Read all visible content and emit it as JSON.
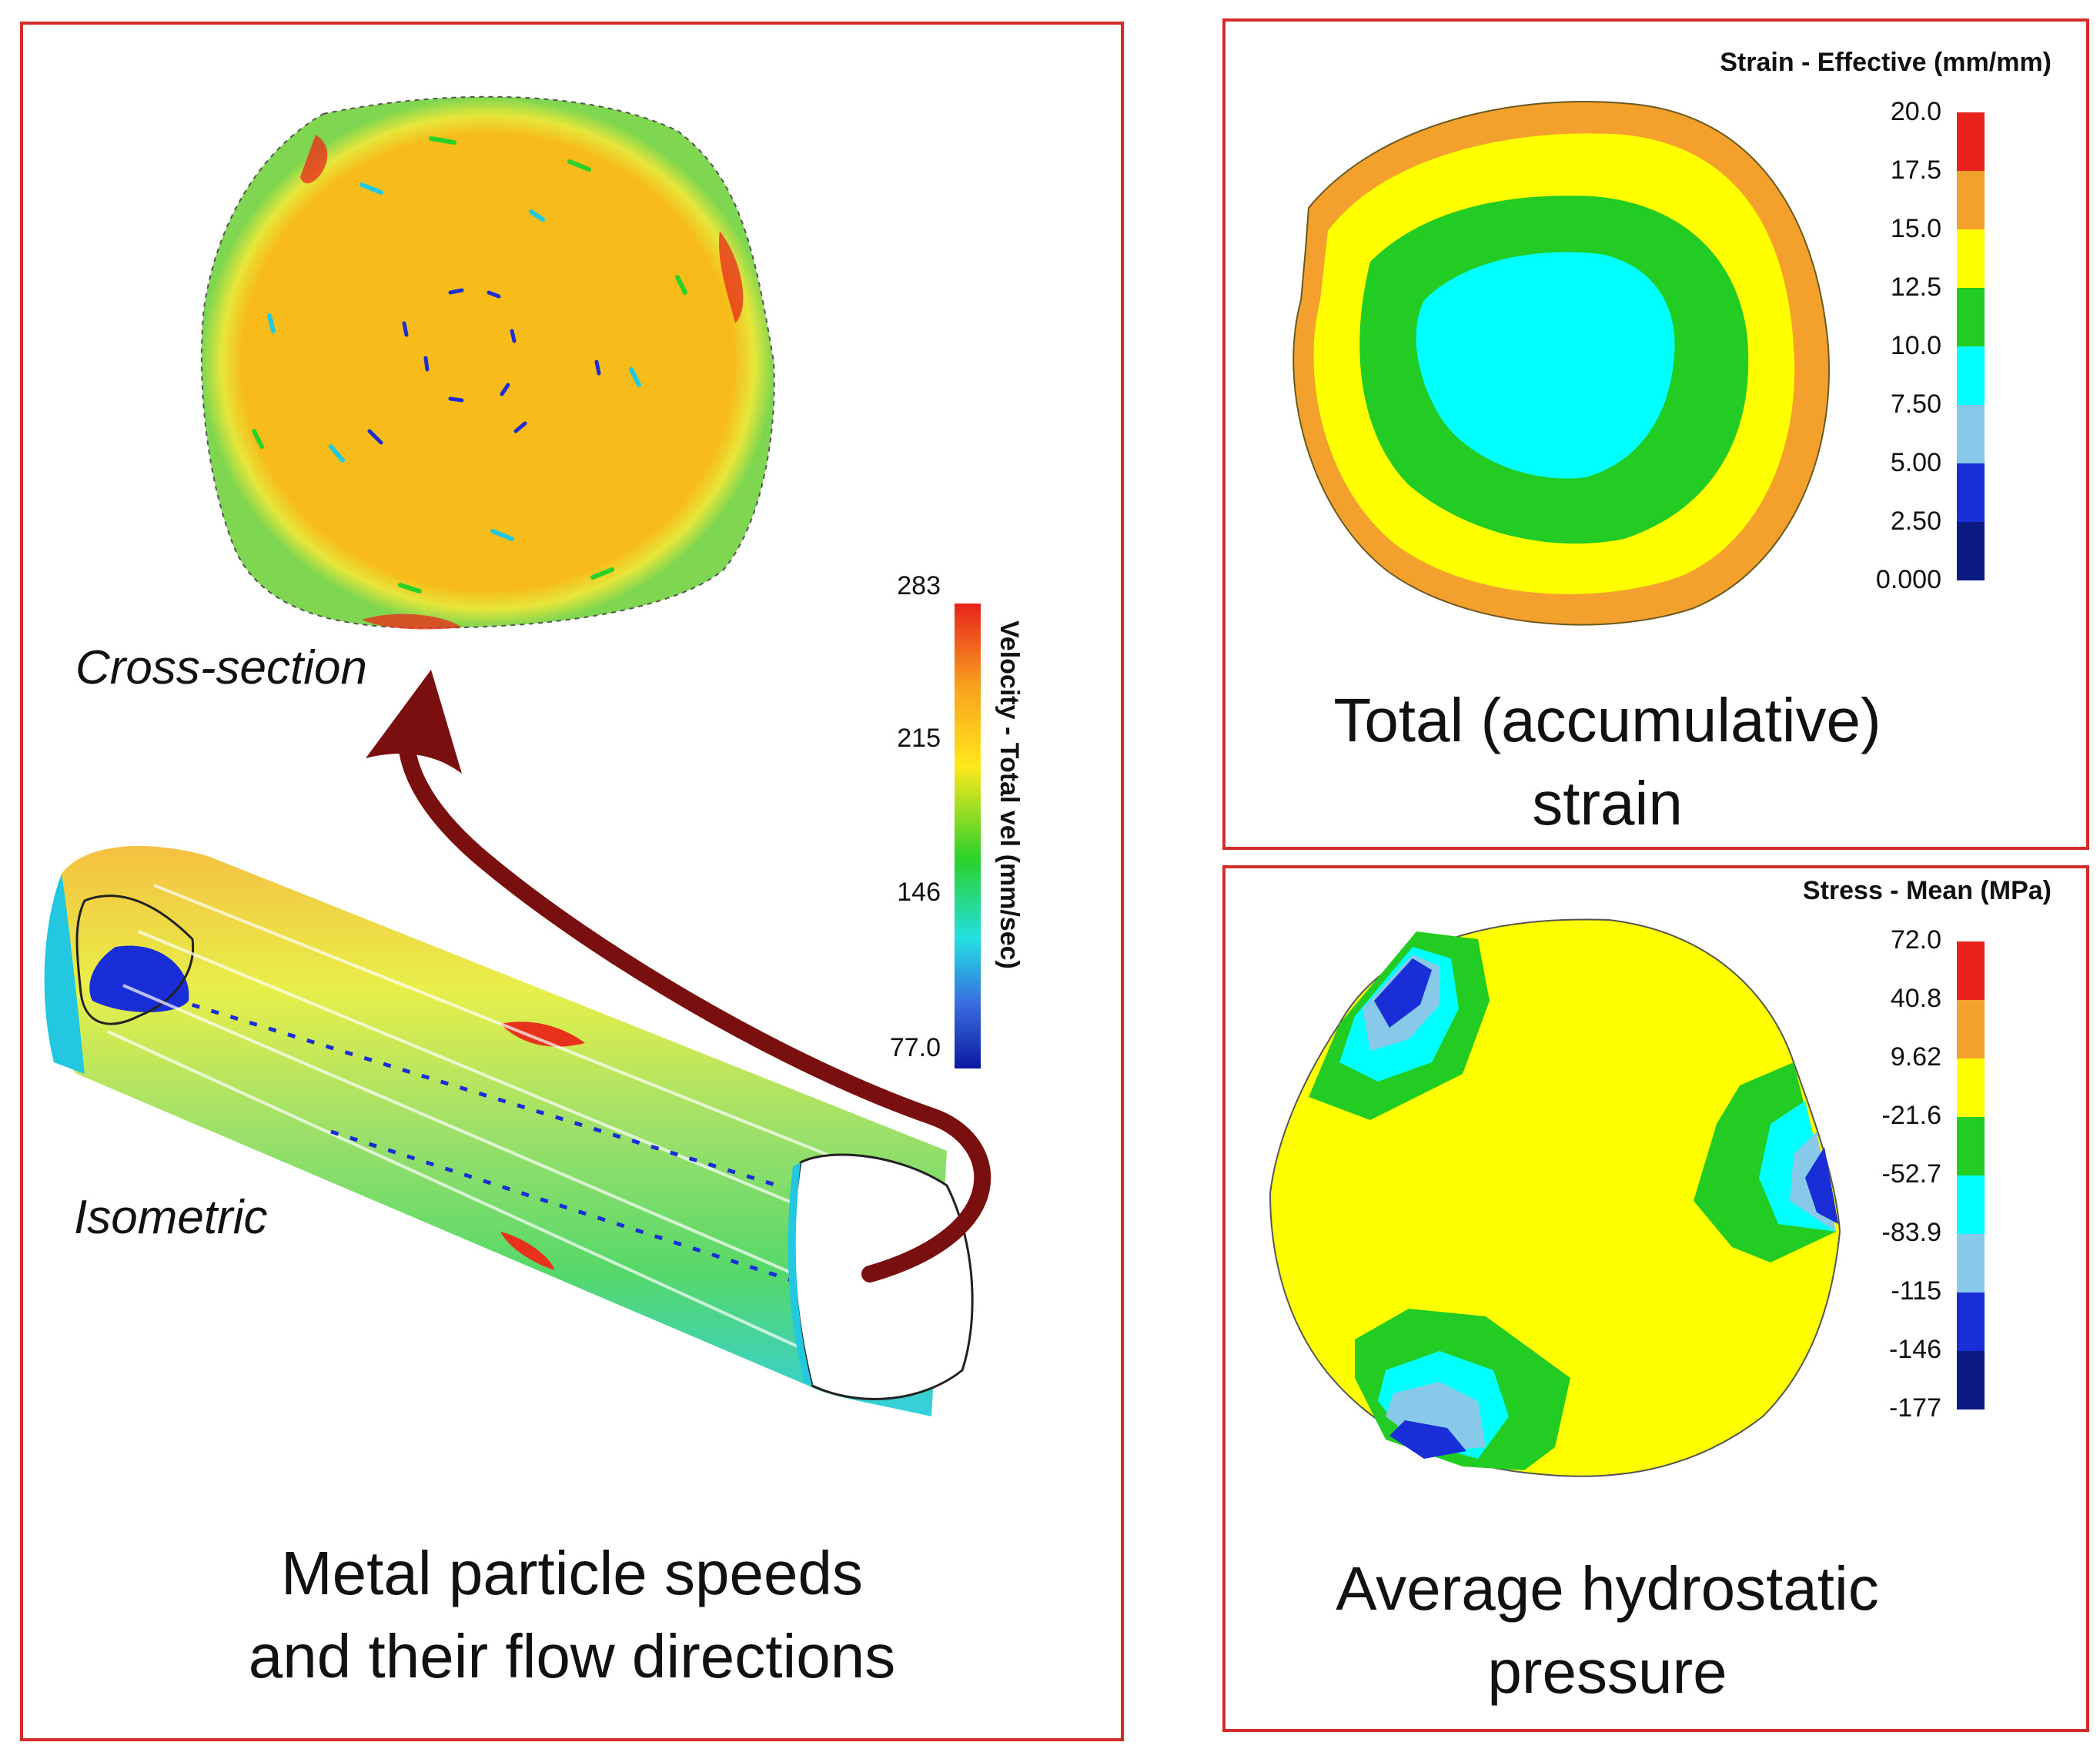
{
  "left_panel": {
    "caption_line1": "Metal particle speeds",
    "caption_line2": "and their flow directions",
    "cross_section_label": "Cross-section",
    "isometric_label": "Isometric",
    "legend": {
      "title": "Velocity - Total vel (mm/sec)",
      "ticks": [
        "283",
        "215",
        "146",
        "77.0"
      ]
    }
  },
  "top_right_panel": {
    "caption_line1": "Total (accumulative)",
    "caption_line2": "strain",
    "legend": {
      "title": "Strain - Effective (mm/mm)",
      "ticks": [
        "20.0",
        "17.5",
        "15.0",
        "12.5",
        "10.0",
        "7.50",
        "5.00",
        "2.50",
        "0.000"
      ],
      "colors": [
        "#e8231c",
        "#f4a02c",
        "#ffff00",
        "#22cc22",
        "#00ffff",
        "#88c8e8",
        "#1a2ed8",
        "#0a1a80"
      ]
    }
  },
  "bottom_right_panel": {
    "caption_line1": "Average hydrostatic",
    "caption_line2": "pressure",
    "legend": {
      "title": "Stress - Mean (MPa)",
      "ticks": [
        "72.0",
        "40.8",
        "9.62",
        "-21.6",
        "-52.7",
        "-83.9",
        "-115",
        "-146",
        "-177"
      ],
      "colors": [
        "#e8231c",
        "#f4a02c",
        "#ffff00",
        "#22cc22",
        "#00ffff",
        "#88c8e8",
        "#1a2ed8",
        "#0a1a80"
      ]
    }
  }
}
